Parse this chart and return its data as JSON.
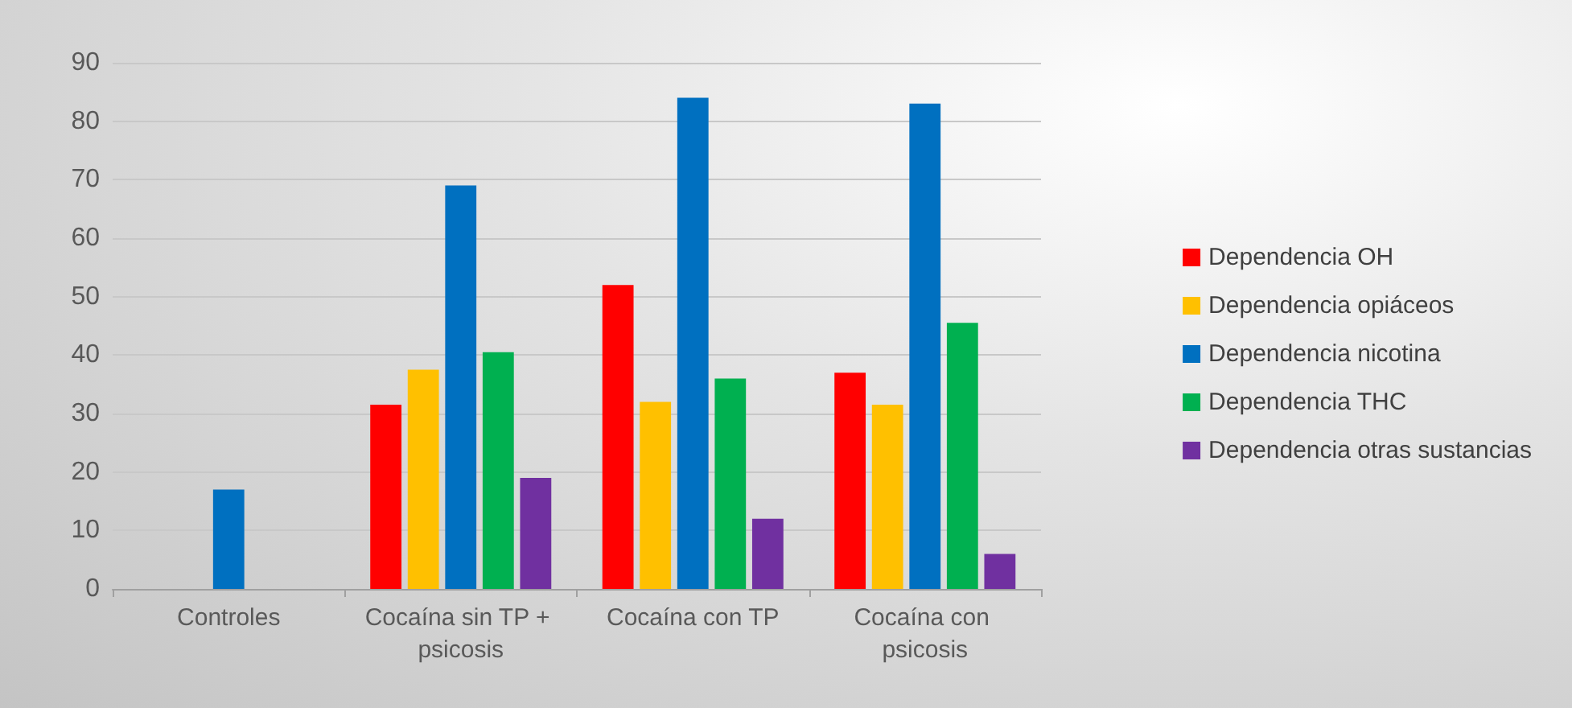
{
  "chart_data": {
    "type": "bar",
    "categories": [
      "Controles",
      "Cocaína sin TP + psicosis",
      "Cocaína con TP",
      "Cocaína con psicosis"
    ],
    "series": [
      {
        "name": "Dependencia OH",
        "color": "#ff0000",
        "values": [
          0,
          31.5,
          52,
          37
        ]
      },
      {
        "name": "Dependencia opiáceos",
        "color": "#ffc000",
        "values": [
          0,
          37.5,
          32,
          31.5
        ]
      },
      {
        "name": "Dependencia nicotina",
        "color": "#0070c0",
        "values": [
          17,
          69,
          84,
          83
        ]
      },
      {
        "name": "Dependencia THC",
        "color": "#00b050",
        "values": [
          0,
          40.5,
          36,
          45.5
        ]
      },
      {
        "name": "Dependencia otras sustancias",
        "color": "#7030a0",
        "values": [
          0,
          19,
          12,
          6
        ]
      }
    ],
    "ylim": [
      0,
      90
    ],
    "yticks": [
      0,
      10,
      20,
      30,
      40,
      50,
      60,
      70,
      80,
      90
    ],
    "grid": "y",
    "legend": "right"
  }
}
